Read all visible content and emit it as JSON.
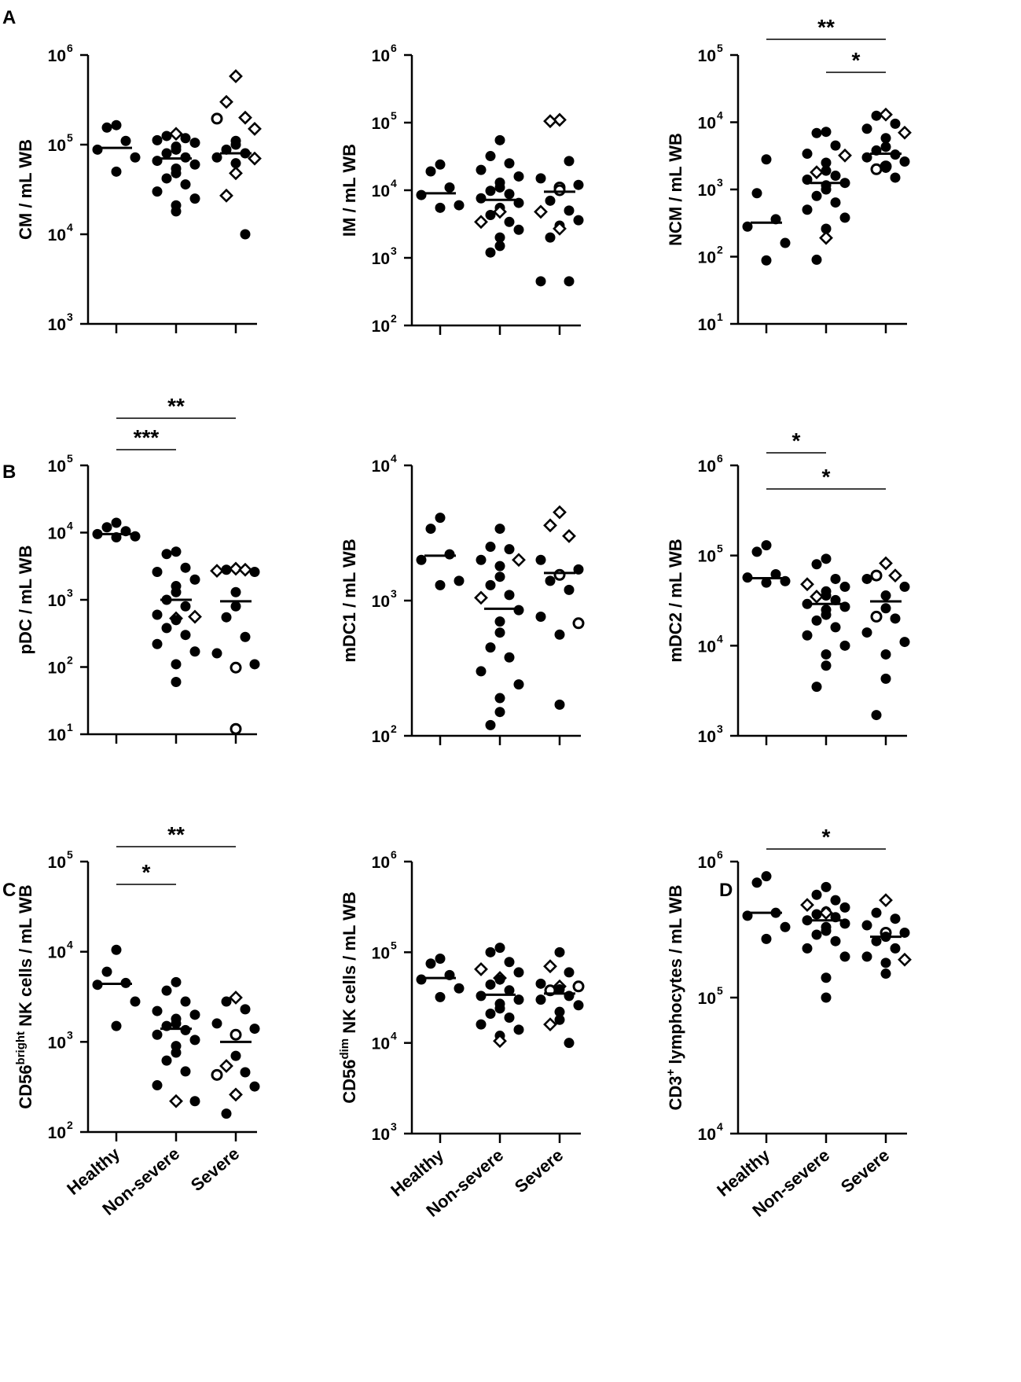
{
  "figure": {
    "panel_letters": [
      "A",
      "B",
      "C",
      "D"
    ]
  },
  "colors": {
    "marker": "#000000",
    "background": "#ffffff"
  },
  "chart_data": [
    {
      "id": "A1",
      "type": "scatter",
      "yscale": "log",
      "ylim": [
        1000,
        1000000
      ],
      "ylabel": "CM / mL WB",
      "ylabel_sup": "",
      "ylabel_suffix": "",
      "categories": [
        "Healthy",
        "Non-severe",
        "Severe"
      ],
      "show_xlabels": false,
      "yticks": [
        {
          "base": "10",
          "exp": "3"
        },
        {
          "base": "10",
          "exp": "4"
        },
        {
          "base": "10",
          "exp": "5"
        },
        {
          "base": "10",
          "exp": "6"
        }
      ],
      "medians": [
        92000,
        70000,
        80000
      ],
      "points": {
        "filled": [
          [
            [
              165000,
              155000,
              110000,
              88000,
              72000,
              50000
            ],
            [
              125000,
              118000,
              112000,
              105000,
              95000,
              88000,
              80000,
              72000,
              66000,
              60000,
              54000,
              48000,
              42000,
              36000,
              30000,
              25000,
              21000,
              18000
            ]
          ],
          [
            [
              110000,
              100000,
              88000,
              80000,
              72000,
              62000,
              10000
            ]
          ]
        ],
        "open_circle": [
          [],
          [],
          [
            195000
          ]
        ],
        "diamond": [
          [],
          [
            132000
          ],
          [
            580000,
            300000,
            200000,
            150000,
            70000,
            48000,
            27000
          ]
        ]
      },
      "significance": []
    },
    {
      "id": "A2",
      "type": "scatter",
      "yscale": "log",
      "ylim": [
        100,
        1000000
      ],
      "ylabel": "IM / mL WB",
      "ylabel_sup": "",
      "ylabel_suffix": "",
      "categories": [
        "Healthy",
        "Non-severe",
        "Severe"
      ],
      "show_xlabels": false,
      "yticks": [
        {
          "base": "10",
          "exp": "2"
        },
        {
          "base": "10",
          "exp": "3"
        },
        {
          "base": "10",
          "exp": "4"
        },
        {
          "base": "10",
          "exp": "5"
        },
        {
          "base": "10",
          "exp": "6"
        }
      ],
      "medians": [
        9000,
        7200,
        9500
      ],
      "points": {
        "filled": [
          [
            [
              24000,
              19000,
              11000,
              8500,
              6000,
              5500
            ],
            [
              55000,
              32000,
              25000,
              20000,
              16000,
              13000,
              11000,
              9800,
              8800,
              7600,
              6500,
              5500,
              4300,
              3400,
              2600,
              2000,
              1500,
              1200
            ]
          ],
          [
            [
              27000,
              15000,
              12000,
              7000,
              5000,
              3600,
              3000,
              2000,
              450,
              450
            ]
          ]
        ],
        "open_circle": [
          [],
          [],
          [
            11000,
            10000
          ]
        ],
        "diamond": [
          [],
          [
            4800,
            3400
          ],
          [
            110000,
            105000,
            4800,
            2700
          ]
        ]
      },
      "significance": []
    },
    {
      "id": "A3",
      "type": "scatter",
      "yscale": "log",
      "ylim": [
        10,
        100000
      ],
      "ylabel": "NCM / mL WB",
      "ylabel_sup": "",
      "ylabel_suffix": "",
      "categories": [
        "Healthy",
        "Non-severe",
        "Severe"
      ],
      "show_xlabels": false,
      "yticks": [
        {
          "base": "10",
          "exp": "1"
        },
        {
          "base": "10",
          "exp": "2"
        },
        {
          "base": "10",
          "exp": "3"
        },
        {
          "base": "10",
          "exp": "4"
        },
        {
          "base": "10",
          "exp": "5"
        }
      ],
      "medians": [
        320,
        1250,
        3400
      ],
      "points": {
        "filled": [
          [
            [
              2800,
              880,
              360,
              280,
              160,
              88
            ],
            [
              7200,
              6900,
              4500,
              3400,
              2500,
              1900,
              1600,
              1400,
              1250,
              1150,
              1000,
              800,
              640,
              500,
              380,
              260,
              90
            ]
          ],
          [
            [
              12500,
              9500,
              8000,
              5800,
              4300,
              3800,
              3300,
              3000,
              2600,
              2100,
              1500
            ]
          ]
        ],
        "open_circle": [
          [],
          [],
          [
            2200,
            2000
          ]
        ],
        "diamond": [
          [],
          [
            3200,
            1800,
            190
          ],
          [
            13000,
            7000
          ]
        ]
      },
      "significance": [
        {
          "from": 0,
          "to": 2,
          "label": "**"
        },
        {
          "from": 1,
          "to": 2,
          "label": "*"
        }
      ]
    },
    {
      "id": "B1",
      "type": "scatter",
      "yscale": "log",
      "ylim": [
        10,
        100000
      ],
      "ylabel": "pDC / mL WB",
      "ylabel_sup": "",
      "ylabel_suffix": "",
      "categories": [
        "Healthy",
        "Non-severe",
        "Severe"
      ],
      "show_xlabels": false,
      "yticks": [
        {
          "base": "10",
          "exp": "1"
        },
        {
          "base": "10",
          "exp": "2"
        },
        {
          "base": "10",
          "exp": "3"
        },
        {
          "base": "10",
          "exp": "4"
        },
        {
          "base": "10",
          "exp": "5"
        }
      ],
      "medians": [
        9500,
        1000,
        950
      ],
      "points": {
        "filled": [
          [
            [
              14000,
              12000,
              10500,
              9500,
              8800,
              8500
            ],
            [
              5200,
              4800,
              3000,
              2600,
              2000,
              1600,
              1300,
              1000,
              800,
              600,
              500,
              380,
              300,
              220,
              170,
              110,
              60
            ]
          ],
          [
            [
              2800,
              2600,
              1300,
              800,
              550,
              280,
              160,
              110
            ]
          ]
        ],
        "open_circle": [
          [],
          [],
          [
            98,
            12
          ]
        ],
        "diamond": [
          [],
          [
            560,
            530
          ],
          [
            2900,
            2800,
            2700
          ]
        ]
      },
      "significance": [
        {
          "from": 0,
          "to": 1,
          "label": "***"
        },
        {
          "from": 0,
          "to": 2,
          "label": "**"
        }
      ]
    },
    {
      "id": "B2",
      "type": "scatter",
      "yscale": "log",
      "ylim": [
        100,
        10000
      ],
      "ylabel": "mDC1 / mL WB",
      "ylabel_sup": "",
      "ylabel_suffix": "",
      "categories": [
        "Healthy",
        "Non-severe",
        "Severe"
      ],
      "show_xlabels": false,
      "yticks": [
        {
          "base": "10",
          "exp": "2"
        },
        {
          "base": "10",
          "exp": "3"
        },
        {
          "base": "10",
          "exp": "4"
        }
      ],
      "medians": [
        2150,
        870,
        1600
      ],
      "points": {
        "filled": [
          [
            [
              4100,
              3400,
              2200,
              2000,
              1400,
              1300
            ],
            [
              3400,
              2500,
              2400,
              2000,
              1800,
              1500,
              1300,
              1100,
              850,
              700,
              580,
              450,
              380,
              300,
              240,
              190,
              150,
              120
            ]
          ],
          [
            [
              2000,
              1700,
              1550,
              1400,
              1200,
              760,
              560,
              170
            ]
          ]
        ],
        "open_circle": [
          [],
          [],
          [
            1550,
            680
          ]
        ],
        "diamond": [
          [],
          [
            2000,
            1050
          ],
          [
            4500,
            3600,
            3000
          ]
        ]
      },
      "significance": []
    },
    {
      "id": "B3",
      "type": "scatter",
      "yscale": "log",
      "ylim": [
        1000,
        1000000
      ],
      "ylabel": "mDC2 / mL WB",
      "ylabel_sup": "",
      "ylabel_suffix": "",
      "categories": [
        "Healthy",
        "Non-severe",
        "Severe"
      ],
      "show_xlabels": false,
      "yticks": [
        {
          "base": "10",
          "exp": "3"
        },
        {
          "base": "10",
          "exp": "4"
        },
        {
          "base": "10",
          "exp": "5"
        },
        {
          "base": "10",
          "exp": "6"
        }
      ],
      "medians": [
        56000,
        29000,
        31000
      ],
      "points": {
        "filled": [
          [
            [
              130000,
              110000,
              62000,
              57000,
              52000,
              50000
            ],
            [
              92000,
              80000,
              55000,
              45000,
              40000,
              36000,
              32000,
              29000,
              27000,
              25000,
              22000,
              19000,
              16000,
              13000,
              10000,
              8000,
              6000,
              3500
            ]
          ],
          [
            [
              55000,
              45000,
              36000,
              26000,
              20000,
              14000,
              11000,
              8000,
              4300,
              1700
            ]
          ]
        ],
        "open_circle": [
          [],
          [],
          [
            60000,
            21000
          ]
        ],
        "diamond": [
          [],
          [
            48000,
            35000
          ],
          [
            82000,
            60000
          ]
        ]
      },
      "significance": [
        {
          "from": 0,
          "to": 1,
          "label": "*"
        },
        {
          "from": 0,
          "to": 2,
          "label": "*"
        }
      ]
    },
    {
      "id": "C1",
      "type": "scatter",
      "yscale": "log",
      "ylim": [
        100,
        100000
      ],
      "ylabel": "CD56",
      "ylabel_sup": "bright",
      "ylabel_suffix": " NK cells / mL WB",
      "categories": [
        "Healthy",
        "Non-severe",
        "Severe"
      ],
      "show_xlabels": true,
      "yticks": [
        {
          "base": "10",
          "exp": "2"
        },
        {
          "base": "10",
          "exp": "3"
        },
        {
          "base": "10",
          "exp": "4"
        },
        {
          "base": "10",
          "exp": "5"
        }
      ],
      "medians": [
        4400,
        1400,
        1000
      ],
      "points": {
        "filled": [
          [
            [
              10500,
              6000,
              4500,
              4300,
              2800,
              1500
            ],
            [
              4600,
              3700,
              2800,
              2200,
              2000,
              1800,
              1600,
              1500,
              1350,
              1200,
              1050,
              900,
              760,
              620,
              470,
              330,
              220
            ]
          ],
          [
            [
              2800,
              2300,
              1600,
              1400,
              700,
              460,
              320,
              260,
              160
            ]
          ]
        ],
        "open_circle": [
          [],
          [],
          [
            1200,
            430
          ]
        ],
        "diamond": [
          [],
          [
            220
          ],
          [
            3100,
            540,
            260
          ]
        ]
      },
      "significance": [
        {
          "from": 0,
          "to": 1,
          "label": "*"
        },
        {
          "from": 0,
          "to": 2,
          "label": "**"
        }
      ]
    },
    {
      "id": "C2",
      "type": "scatter",
      "yscale": "log",
      "ylim": [
        1000,
        1000000
      ],
      "ylabel": "CD56",
      "ylabel_sup": "dim",
      "ylabel_suffix": " NK cells / mL WB",
      "categories": [
        "Healthy",
        "Non-severe",
        "Severe"
      ],
      "show_xlabels": true,
      "yticks": [
        {
          "base": "10",
          "exp": "3"
        },
        {
          "base": "10",
          "exp": "4"
        },
        {
          "base": "10",
          "exp": "5"
        },
        {
          "base": "10",
          "exp": "6"
        }
      ],
      "medians": [
        52000,
        34000,
        35000
      ],
      "points": {
        "filled": [
          [
            [
              85000,
              75000,
              56000,
              50000,
              40000,
              32000
            ],
            [
              112000,
              100000,
              78000,
              60000,
              50000,
              44000,
              38000,
              33000,
              30000,
              27000,
              24000,
              21000,
              19000,
              16000,
              14000,
              12000
            ]
          ],
          [
            [
              100000,
              60000,
              45000,
              39000,
              33000,
              30000,
              26000,
              22000,
              18000,
              10000
            ]
          ]
        ],
        "open_circle": [
          [],
          [],
          [
            42000,
            38000
          ]
        ],
        "diamond": [
          [],
          [
            65000,
            52000,
            10500
          ],
          [
            70000,
            42000,
            16000
          ]
        ]
      },
      "significance": []
    },
    {
      "id": "D",
      "type": "scatter",
      "yscale": "log",
      "ylim": [
        10000,
        1000000
      ],
      "ylabel": "CD3",
      "ylabel_sup": "+",
      "ylabel_suffix": " lymphocytes / mL WB",
      "categories": [
        "Healthy",
        "Non-severe",
        "Severe"
      ],
      "show_xlabels": true,
      "yticks": [
        {
          "base": "10",
          "exp": "4"
        },
        {
          "base": "10",
          "exp": "5"
        },
        {
          "base": "10",
          "exp": "6"
        }
      ],
      "medians": [
        420000,
        370000,
        280000
      ],
      "points": {
        "filled": [
          [
            [
              780000,
              700000,
              420000,
              400000,
              330000,
              270000
            ],
            [
              650000,
              570000,
              520000,
              460000,
              430000,
              410000,
              390000,
              370000,
              350000,
              330000,
              310000,
              290000,
              260000,
              230000,
              200000,
              140000,
              100000
            ]
          ],
          [
            [
              420000,
              380000,
              340000,
              300000,
              280000,
              260000,
              230000,
              200000,
              180000,
              150000
            ]
          ]
        ],
        "open_circle": [
          [],
          [],
          [
            300000
          ]
        ],
        "diamond": [
          [],
          [
            480000,
            420000
          ],
          [
            520000,
            190000
          ]
        ]
      },
      "significance": [
        {
          "from": 0,
          "to": 2,
          "label": "*"
        }
      ]
    }
  ]
}
